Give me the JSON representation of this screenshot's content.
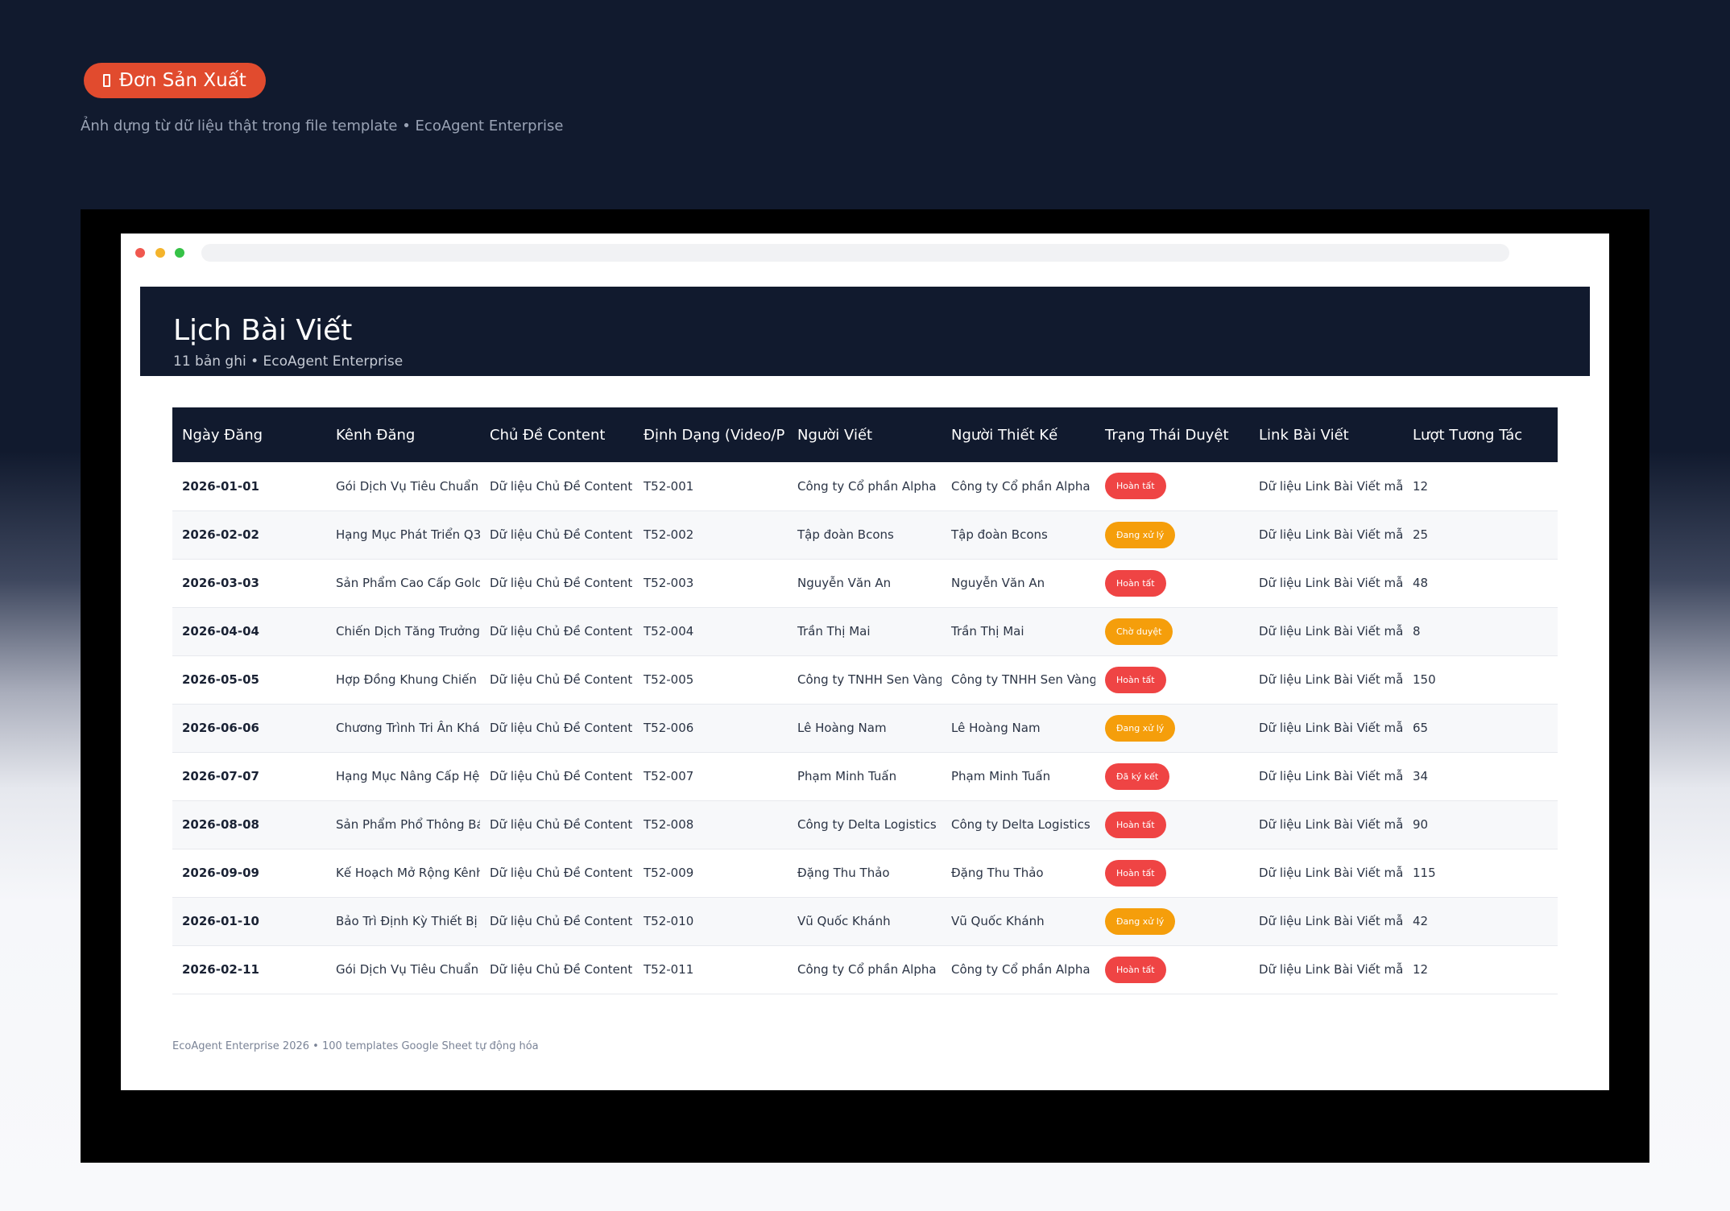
{
  "badge": {
    "label": "Đơn Sản Xuất"
  },
  "caption": "Ảnh dựng từ dữ liệu thật trong file template • EcoAgent Enterprise",
  "header": {
    "title": "Lịch Bài Viết",
    "subtitle": "11 bản ghi • EcoAgent Enterprise"
  },
  "table": {
    "columns": [
      "Ngày Đăng",
      "Kênh Đăng",
      "Chủ Đề Content",
      "Định Dạng (Video/P",
      "Người Viết",
      "Người Thiết Kế",
      "Trạng Thái Duyệt",
      "Link Bài Viết",
      "Lượt Tương Tác"
    ],
    "rows": [
      {
        "date": "2026-01-01",
        "channel": "Gói Dịch Vụ Tiêu Chuẩn",
        "topic": "Dữ liệu Chủ Đề Content m",
        "format": "T52-001",
        "writer": "Công ty Cổ phần Alpha",
        "designer": "Công ty Cổ phần Alpha",
        "status": "Hoàn tất",
        "status_color": "#ef4444",
        "link": "Dữ liệu Link Bài Viết mẫ",
        "interactions": "12"
      },
      {
        "date": "2026-02-02",
        "channel": "Hạng Mục Phát Triển Q3",
        "topic": "Dữ liệu Chủ Đề Content m",
        "format": "T52-002",
        "writer": "Tập đoàn Bcons",
        "designer": "Tập đoàn Bcons",
        "status": "Đang xử lý",
        "status_color": "#f59e0b",
        "link": "Dữ liệu Link Bài Viết mẫ",
        "interactions": "25"
      },
      {
        "date": "2026-03-03",
        "channel": "Sản Phẩm Cao Cấp Gold",
        "topic": "Dữ liệu Chủ Đề Content m",
        "format": "T52-003",
        "writer": "Nguyễn Văn An",
        "designer": "Nguyễn Văn An",
        "status": "Hoàn tất",
        "status_color": "#ef4444",
        "link": "Dữ liệu Link Bài Viết mẫ",
        "interactions": "48"
      },
      {
        "date": "2026-04-04",
        "channel": "Chiến Dịch Tăng Trưởng T",
        "topic": "Dữ liệu Chủ Đề Content m",
        "format": "T52-004",
        "writer": "Trần Thị Mai",
        "designer": "Trần Thị Mai",
        "status": "Chờ duyệt",
        "status_color": "#f59e0b",
        "link": "Dữ liệu Link Bài Viết mẫ",
        "interactions": "8"
      },
      {
        "date": "2026-05-05",
        "channel": "Hợp Đồng Khung Chiến Lược",
        "topic": "Dữ liệu Chủ Đề Content m",
        "format": "T52-005",
        "writer": "Công ty TNHH Sen Vàng",
        "designer": "Công ty TNHH Sen Vàng",
        "status": "Hoàn tất",
        "status_color": "#ef4444",
        "link": "Dữ liệu Link Bài Viết mẫ",
        "interactions": "150"
      },
      {
        "date": "2026-06-06",
        "channel": "Chương Trình Tri Ân Khác",
        "topic": "Dữ liệu Chủ Đề Content m",
        "format": "T52-006",
        "writer": "Lê Hoàng Nam",
        "designer": "Lê Hoàng Nam",
        "status": "Đang xử lý",
        "status_color": "#f59e0b",
        "link": "Dữ liệu Link Bài Viết mẫ",
        "interactions": "65"
      },
      {
        "date": "2026-07-07",
        "channel": "Hạng Mục Nâng Cấp Hệ Thống",
        "topic": "Dữ liệu Chủ Đề Content m",
        "format": "T52-007",
        "writer": "Phạm Minh Tuấn",
        "designer": "Phạm Minh Tuấn",
        "status": "Đã ký kết",
        "status_color": "#ef4444",
        "link": "Dữ liệu Link Bài Viết mẫ",
        "interactions": "34"
      },
      {
        "date": "2026-08-08",
        "channel": "Sản Phẩm Phổ Thông Bán Chạy",
        "topic": "Dữ liệu Chủ Đề Content m",
        "format": "T52-008",
        "writer": "Công ty Delta Logistics",
        "designer": "Công ty Delta Logistics",
        "status": "Hoàn tất",
        "status_color": "#ef4444",
        "link": "Dữ liệu Link Bài Viết mẫ",
        "interactions": "90"
      },
      {
        "date": "2026-09-09",
        "channel": "Kế Hoạch Mở Rộng Kênh Phân Phối",
        "topic": "Dữ liệu Chủ Đề Content m",
        "format": "T52-009",
        "writer": "Đặng Thu Thảo",
        "designer": "Đặng Thu Thảo",
        "status": "Hoàn tất",
        "status_color": "#ef4444",
        "link": "Dữ liệu Link Bài Viết mẫ",
        "interactions": "115"
      },
      {
        "date": "2026-01-10",
        "channel": "Bảo Trì Định Kỳ Thiết Bị",
        "topic": "Dữ liệu Chủ Đề Content m",
        "format": "T52-010",
        "writer": "Vũ Quốc Khánh",
        "designer": "Vũ Quốc Khánh",
        "status": "Đang xử lý",
        "status_color": "#f59e0b",
        "link": "Dữ liệu Link Bài Viết mẫ",
        "interactions": "42"
      },
      {
        "date": "2026-02-11",
        "channel": "Gói Dịch Vụ Tiêu Chuẩn",
        "topic": "Dữ liệu Chủ Đề Content m",
        "format": "T52-011",
        "writer": "Công ty Cổ phần Alpha",
        "designer": "Công ty Cổ phần Alpha",
        "status": "Hoàn tất",
        "status_color": "#ef4444",
        "link": "Dữ liệu Link Bài Viết mẫ",
        "interactions": "12"
      }
    ]
  },
  "footer": "EcoAgent Enterprise 2026 • 100 templates Google Sheet tự động hóa"
}
